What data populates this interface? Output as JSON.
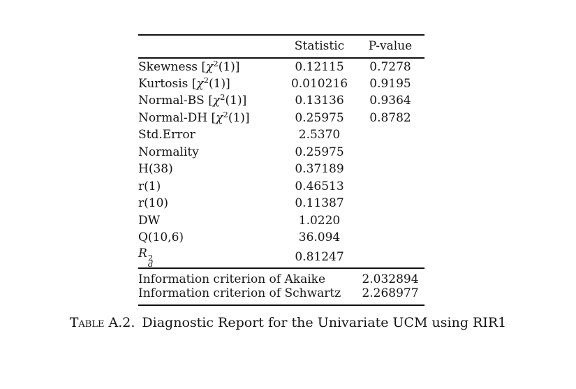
{
  "table": {
    "columns": [
      "Statistic",
      "P-value"
    ],
    "rows": [
      {
        "label_parts": [
          {
            "t": "Skewness ["
          },
          {
            "t": "χ",
            "style": "italic"
          },
          {
            "t": "2",
            "style": "sup"
          },
          {
            "t": "(1)]"
          }
        ],
        "statistic": "0.12115",
        "pvalue": "0.7278"
      },
      {
        "label_parts": [
          {
            "t": "Kurtosis ["
          },
          {
            "t": "χ",
            "style": "italic"
          },
          {
            "t": "2",
            "style": "sup"
          },
          {
            "t": "(1)]"
          }
        ],
        "statistic": "0.010216",
        "pvalue": "0.9195"
      },
      {
        "label_parts": [
          {
            "t": "Normal-BS ["
          },
          {
            "t": "χ",
            "style": "italic"
          },
          {
            "t": "2",
            "style": "sup"
          },
          {
            "t": "(1)]"
          }
        ],
        "statistic": "0.13136",
        "pvalue": "0.9364"
      },
      {
        "label_parts": [
          {
            "t": "Normal-DH ["
          },
          {
            "t": "χ",
            "style": "italic"
          },
          {
            "t": "2",
            "style": "sup"
          },
          {
            "t": "(1)]"
          }
        ],
        "statistic": "0.25975",
        "pvalue": "0.8782"
      },
      {
        "label_parts": [
          {
            "t": "Std.Error"
          }
        ],
        "statistic": "2.5370",
        "pvalue": ""
      },
      {
        "label_parts": [
          {
            "t": "Normality"
          }
        ],
        "statistic": "0.25975",
        "pvalue": ""
      },
      {
        "label_parts": [
          {
            "t": "H(38)"
          }
        ],
        "statistic": "0.37189",
        "pvalue": ""
      },
      {
        "label_parts": [
          {
            "t": "r(1)"
          }
        ],
        "statistic": "0.46513",
        "pvalue": ""
      },
      {
        "label_parts": [
          {
            "t": "r(10)"
          }
        ],
        "statistic": "0.11387",
        "pvalue": ""
      },
      {
        "label_parts": [
          {
            "t": "DW"
          }
        ],
        "statistic": "1.0220",
        "pvalue": ""
      },
      {
        "label_parts": [
          {
            "t": "Q(10,6)"
          }
        ],
        "statistic": "36.094",
        "pvalue": ""
      },
      {
        "label_parts": [
          {
            "t": "R",
            "style": "italic"
          },
          {
            "style": "stack",
            "sup": "2",
            "sub": "d"
          }
        ],
        "statistic": "0.81247",
        "pvalue": ""
      }
    ],
    "footer_rows": [
      {
        "label": "Information criterion of Akaike",
        "value": "2.032894"
      },
      {
        "label": "Information criterion of Schwartz",
        "value": "2.268977"
      }
    ]
  },
  "caption": {
    "label": "Table A.2.",
    "text": "Diagnostic Report for the Univariate UCM using RIR1"
  }
}
